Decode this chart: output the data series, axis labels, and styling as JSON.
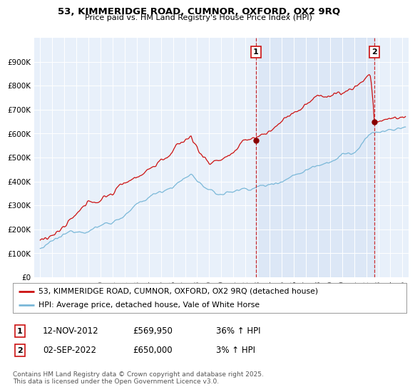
{
  "title_line1": "53, KIMMERIDGE ROAD, CUMNOR, OXFORD, OX2 9RQ",
  "title_line2": "Price paid vs. HM Land Registry's House Price Index (HPI)",
  "background_color": "#ffffff",
  "plot_bg_color": "#dce8f5",
  "plot_bg_color2": "#e8f0fa",
  "grid_color": "#ffffff",
  "line1_color": "#cc1111",
  "line2_color": "#7ab8d8",
  "vline_color": "#cc1111",
  "ylim": [
    0,
    1000000
  ],
  "yticks": [
    0,
    100000,
    200000,
    300000,
    400000,
    500000,
    600000,
    700000,
    800000,
    900000
  ],
  "ytick_labels": [
    "£0",
    "£100K",
    "£200K",
    "£300K",
    "£400K",
    "£500K",
    "£600K",
    "£700K",
    "£800K",
    "£900K"
  ],
  "sale1_date": "12-NOV-2012",
  "sale1_price": "£569,950",
  "sale1_hpi": "36% ↑ HPI",
  "sale1_label": "1",
  "sale1_x": 2012.87,
  "sale1_y": 569950,
  "sale2_date": "02-SEP-2022",
  "sale2_price": "£650,000",
  "sale2_hpi": "3% ↑ HPI",
  "sale2_label": "2",
  "sale2_x": 2022.67,
  "sale2_y": 650000,
  "legend_line1": "53, KIMMERIDGE ROAD, CUMNOR, OXFORD, OX2 9RQ (detached house)",
  "legend_line2": "HPI: Average price, detached house, Vale of White Horse",
  "footer": "Contains HM Land Registry data © Crown copyright and database right 2025.\nThis data is licensed under the Open Government Licence v3.0.",
  "xlim": [
    1994.5,
    2025.5
  ],
  "xtick_years": [
    1995,
    1996,
    1997,
    1998,
    1999,
    2000,
    2001,
    2002,
    2003,
    2004,
    2005,
    2006,
    2007,
    2008,
    2009,
    2010,
    2011,
    2012,
    2013,
    2014,
    2015,
    2016,
    2017,
    2018,
    2019,
    2020,
    2021,
    2022,
    2023,
    2024,
    2025
  ]
}
